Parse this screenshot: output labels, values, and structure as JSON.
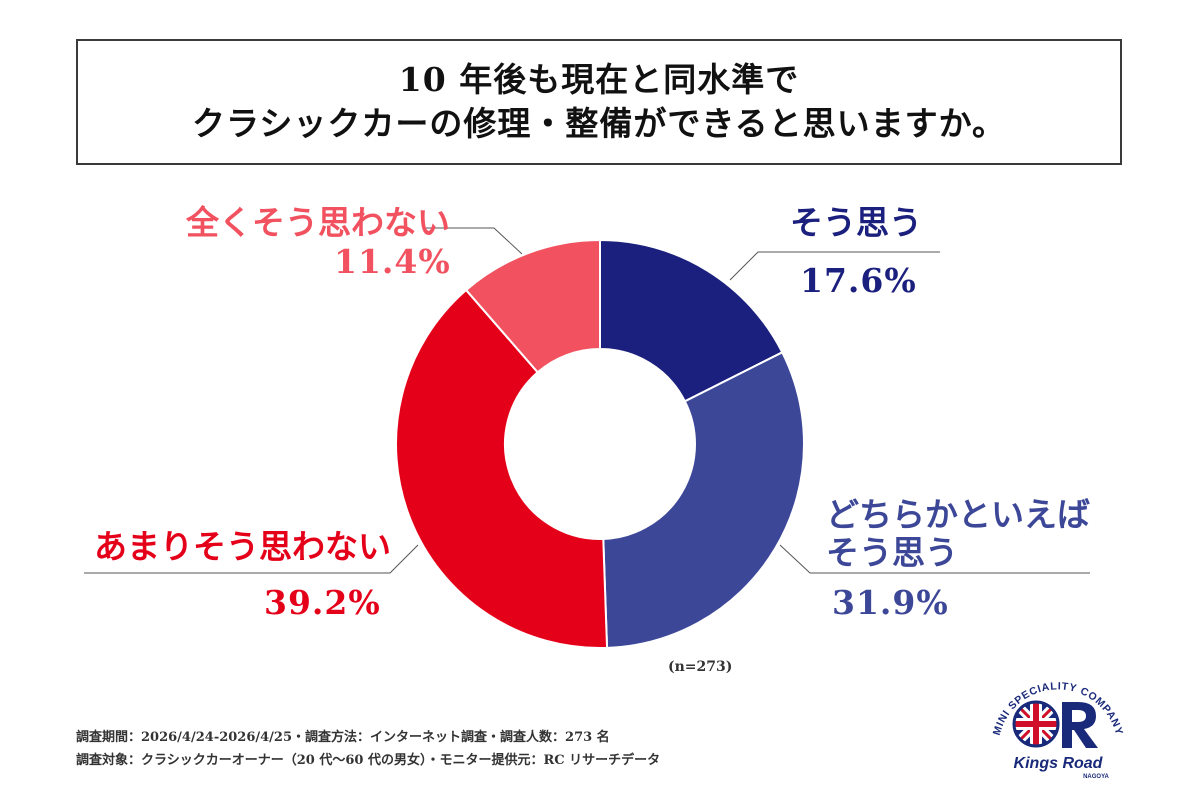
{
  "title": {
    "line1": "10 年後も現在と同水準で",
    "line2": "クラシックカーの修理・整備ができると思いますか。"
  },
  "chart_data": {
    "type": "pie",
    "donut": true,
    "unit": "%",
    "categories": [
      "そう思う",
      "どちらかといえばそう思う",
      "あまりそう思わない",
      "全くそう思わない"
    ],
    "values": [
      17.6,
      31.9,
      39.2,
      11.4
    ],
    "labels": [
      {
        "text": [
          "そう思う"
        ],
        "value": "17.6%"
      },
      {
        "text": [
          "どちらかといえば",
          "そう思う"
        ],
        "value": "31.9%"
      },
      {
        "text": [
          "あまりそう思わない"
        ],
        "value": "39.2%"
      },
      {
        "text": [
          "全くそう思わない"
        ],
        "value": "11.4%"
      }
    ],
    "colors": [
      "#1b1f7d",
      "#3d4798",
      "#e5001a",
      "#f2515f"
    ],
    "sample_size": "(n=273)",
    "start_angle_deg": 0,
    "direction": "clockwise"
  },
  "footnotes": [
    "調査期間：2026/4/24-2026/4/25・調査方法：インターネット調査・調査人数：273 名",
    "調査対象：クラシックカーオーナー（20 代〜60 代の男女）・モニター提供元：RC リサーチデータ"
  ],
  "logo": {
    "arc_text": "MINI SPECIALITY COMPANY",
    "brand": "Kings Road",
    "sub": "NAGOYA",
    "colors": {
      "navy": "#1a2a7a",
      "red": "#d0102a"
    }
  }
}
